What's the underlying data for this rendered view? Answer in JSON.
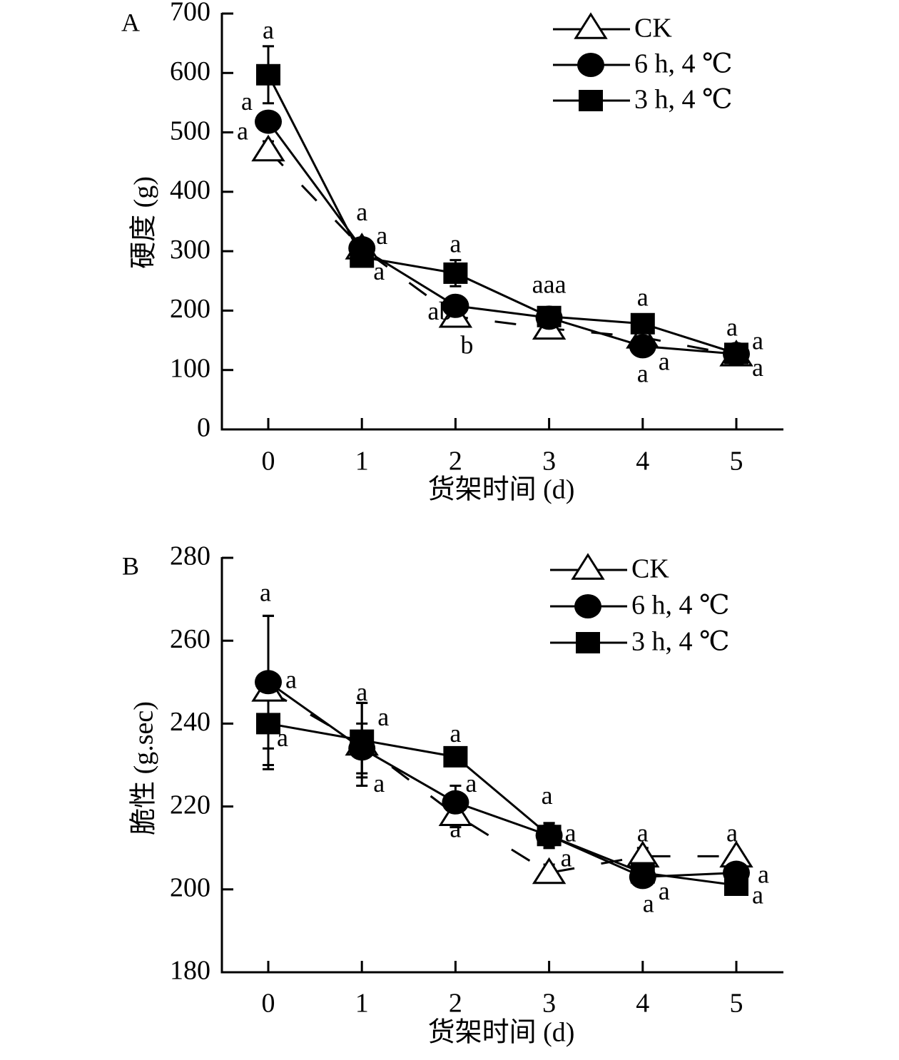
{
  "chart_data": [
    {
      "type": "line",
      "panel_label": "A",
      "title": "",
      "xlabel": "货架时间 (d)",
      "ylabel": "硬度 (g)",
      "x": [
        0,
        1,
        2,
        3,
        4,
        5
      ],
      "x_tick_labels": [
        "0",
        "1",
        "2",
        "3",
        "4",
        "5"
      ],
      "ylim": [
        0,
        700
      ],
      "y_ticks": [
        0,
        100,
        200,
        300,
        400,
        500,
        600,
        700
      ],
      "y_tick_labels": [
        "0",
        "100",
        "200",
        "300",
        "400",
        "500",
        "600",
        "700"
      ],
      "grid": false,
      "legend_position": "top-right",
      "series": [
        {
          "name": "CK",
          "marker": "open-triangle",
          "line_style": "dashed",
          "values": [
            470,
            305,
            190,
            170,
            155,
            125
          ],
          "errors": [
            15,
            15,
            15,
            10,
            10,
            8
          ]
        },
        {
          "name": "6 h, 4 ℃",
          "marker": "filled-circle",
          "line_style": "solid",
          "values": [
            518,
            305,
            208,
            188,
            140,
            127
          ],
          "errors": [
            15,
            15,
            15,
            10,
            10,
            8
          ]
        },
        {
          "name": "3 h, 4 ℃",
          "marker": "filled-square",
          "line_style": "solid",
          "values": [
            597,
            290,
            263,
            190,
            178,
            128
          ],
          "errors": [
            48,
            15,
            22,
            10,
            10,
            8
          ]
        }
      ],
      "annotations": [
        {
          "text": "a",
          "x": 0,
          "y": 668
        },
        {
          "text": "a",
          "x": 0,
          "y": 548
        },
        {
          "text": "a",
          "x": 0,
          "y": 498
        },
        {
          "text": "a",
          "x": 1,
          "y": 362
        },
        {
          "text": "a",
          "x": 1,
          "y": 322
        },
        {
          "text": "a",
          "x": 1,
          "y": 262
        },
        {
          "text": "a",
          "x": 2,
          "y": 308
        },
        {
          "text": "ab",
          "x": 2,
          "y": 195
        },
        {
          "text": "b",
          "x": 2,
          "y": 138
        },
        {
          "text": "aaa",
          "x": 3,
          "y": 240
        },
        {
          "text": "a",
          "x": 4,
          "y": 218
        },
        {
          "text": "a",
          "x": 4,
          "y": 110
        },
        {
          "text": "a",
          "x": 4,
          "y": 90
        },
        {
          "text": "a",
          "x": 5,
          "y": 168
        },
        {
          "text": "a",
          "x": 5,
          "y": 145
        },
        {
          "text": "a",
          "x": 5,
          "y": 100
        }
      ]
    },
    {
      "type": "line",
      "panel_label": "B",
      "title": "",
      "xlabel": "货架时间 (d)",
      "ylabel": "脆性 (g.sec)",
      "x": [
        0,
        1,
        2,
        3,
        4,
        5
      ],
      "x_tick_labels": [
        "0",
        "1",
        "2",
        "3",
        "4",
        "5"
      ],
      "ylim": [
        180,
        280
      ],
      "y_ticks": [
        180,
        200,
        220,
        240,
        260,
        280
      ],
      "y_tick_labels": [
        "180",
        "200",
        "220",
        "240",
        "260",
        "280"
      ],
      "grid": false,
      "legend_position": "top-right",
      "series": [
        {
          "name": "CK",
          "marker": "open-triangle",
          "line_style": "dashed",
          "values": [
            248,
            235,
            218,
            204,
            208,
            208
          ],
          "errors": [
            18,
            10,
            3,
            2,
            2,
            1
          ]
        },
        {
          "name": "6 h, 4 ℃",
          "marker": "filled-circle",
          "line_style": "solid",
          "values": [
            250,
            234,
            221,
            213,
            203,
            204
          ],
          "errors": [
            16,
            6,
            4,
            3,
            2,
            1
          ]
        },
        {
          "name": "3 h, 4 ℃",
          "marker": "filled-square",
          "line_style": "solid",
          "values": [
            240,
            236,
            232,
            213,
            204,
            201
          ],
          "errors": [
            11,
            9,
            1,
            3,
            1,
            1
          ]
        }
      ],
      "annotations": [
        {
          "text": "a",
          "x": 0,
          "y": 271
        },
        {
          "text": "a",
          "x": 0,
          "y": 250
        },
        {
          "text": "a",
          "x": 0,
          "y": 236
        },
        {
          "text": "a",
          "x": 1,
          "y": 247
        },
        {
          "text": "a",
          "x": 1,
          "y": 241
        },
        {
          "text": "a",
          "x": 1,
          "y": 225
        },
        {
          "text": "a",
          "x": 2,
          "y": 237
        },
        {
          "text": "a",
          "x": 2,
          "y": 225
        },
        {
          "text": "a",
          "x": 2,
          "y": 214
        },
        {
          "text": "a",
          "x": 3,
          "y": 222
        },
        {
          "text": "a",
          "x": 3,
          "y": 213
        },
        {
          "text": "a",
          "x": 3,
          "y": 207
        },
        {
          "text": "a",
          "x": 4,
          "y": 213
        },
        {
          "text": "a",
          "x": 4,
          "y": 199
        },
        {
          "text": "a",
          "x": 4,
          "y": 196
        },
        {
          "text": "a",
          "x": 5,
          "y": 213
        },
        {
          "text": "a",
          "x": 5,
          "y": 203
        },
        {
          "text": "a",
          "x": 5,
          "y": 198
        }
      ]
    }
  ]
}
